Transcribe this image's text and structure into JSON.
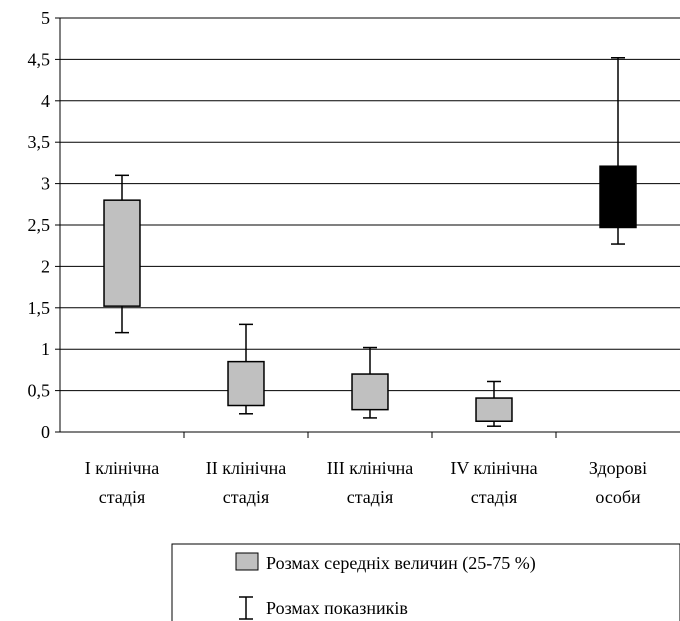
{
  "chart_data": {
    "type": "box",
    "ylim": [
      0,
      5
    ],
    "ytick_labels": [
      "0",
      "0,5",
      "1",
      "1,5",
      "2",
      "2,5",
      "3",
      "3,5",
      "4",
      "4,5",
      "5"
    ],
    "ytick_values": [
      0,
      0.5,
      1,
      1.5,
      2,
      2.5,
      3,
      3.5,
      4,
      4.5,
      5
    ],
    "grid": true,
    "legend_position": "bottom",
    "colors": {
      "box_grey": "#c0c0c0",
      "box_black": "#000000",
      "line": "#000000"
    },
    "categories": [
      {
        "line1": "I клінічна",
        "line2": "стадія"
      },
      {
        "line1": "II клінічна",
        "line2": "стадія"
      },
      {
        "line1": "III клінічна",
        "line2": "стадія"
      },
      {
        "line1": "IV клінічна",
        "line2": "стадія"
      },
      {
        "line1": "Здорові",
        "line2": "особи"
      }
    ],
    "boxes": [
      {
        "min": 1.2,
        "q1": 1.52,
        "q3": 2.8,
        "max": 3.1,
        "fill": "#c0c0c0"
      },
      {
        "min": 0.22,
        "q1": 0.32,
        "q3": 0.85,
        "max": 1.3,
        "fill": "#c0c0c0"
      },
      {
        "min": 0.17,
        "q1": 0.27,
        "q3": 0.7,
        "max": 1.02,
        "fill": "#c0c0c0"
      },
      {
        "min": 0.07,
        "q1": 0.13,
        "q3": 0.41,
        "max": 0.61,
        "fill": "#c0c0c0"
      },
      {
        "min": 2.27,
        "q1": 2.47,
        "q3": 3.21,
        "max": 4.52,
        "fill": "#000000"
      }
    ],
    "legend": {
      "box_label": "Розмах середніх величин (25-75 %)",
      "whisker_label": "Розмах показників"
    }
  }
}
